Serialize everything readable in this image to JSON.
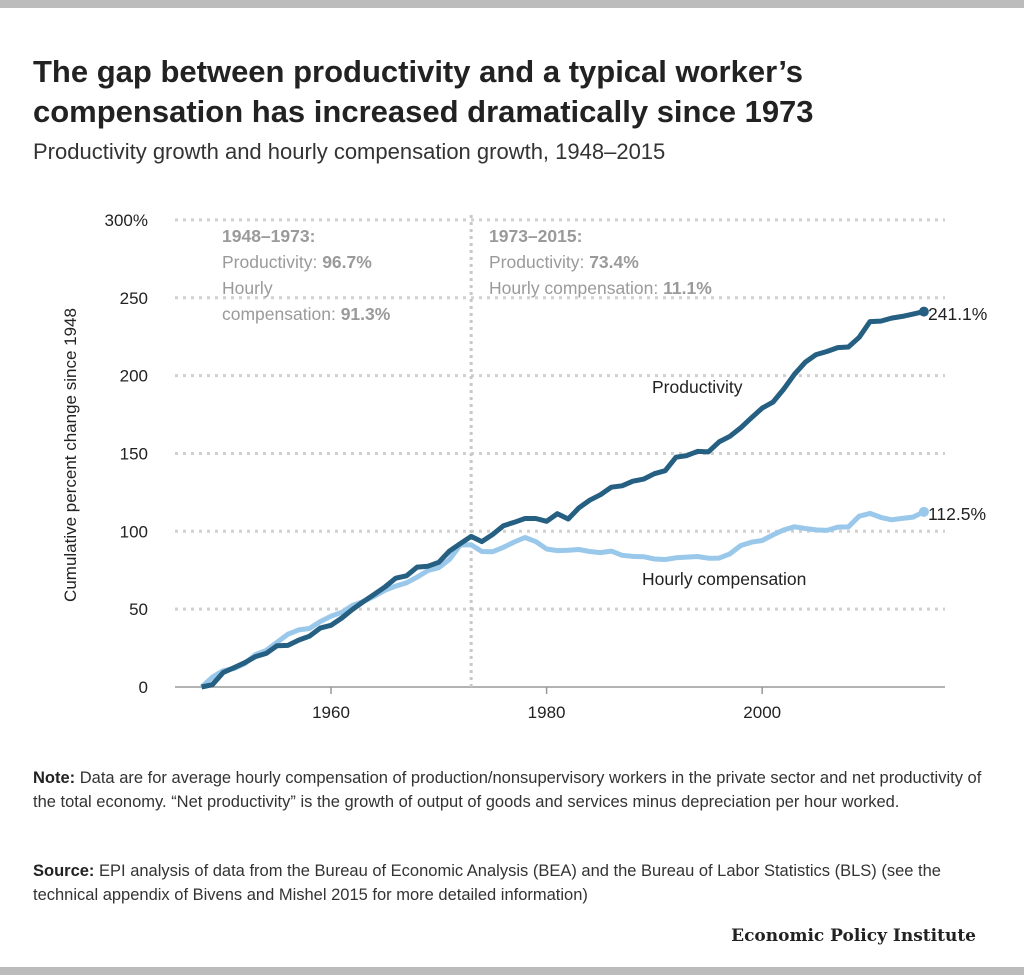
{
  "title": "The gap between productivity and a typical worker’s compensation has increased dramatically since 1973",
  "subtitle": "Productivity growth and hourly compensation growth, 1948–2015",
  "note_label": "Note:",
  "note_text": " Data are for average hourly compensation of production/nonsupervisory workers in the private sector and net productivity of the total economy. “Net productivity” is the growth of output of goods and services minus depreciation per hour worked.",
  "source_label": "Source:",
  "source_text": " EPI analysis of data from the Bureau of Economic Analysis (BEA) and the Bureau of Labor Statistics (BLS) (see the technical appendix of Bivens and Mishel 2015 for more detailed information)",
  "logo": "Economic Policy Institute",
  "colors": {
    "productivity": "#255f82",
    "compensation": "#9ac8eb",
    "annotation": "#9a9a9a",
    "grid": "#d0d0d0"
  },
  "chart_data": {
    "type": "line",
    "title": "The gap between productivity and a typical worker’s compensation has increased dramatically since 1973",
    "subtitle": "Productivity growth and hourly compensation growth, 1948–2015",
    "xlabel": "",
    "ylabel": "Cumulative percent change since 1948",
    "xlim": [
      1948,
      2015
    ],
    "ylim": [
      0,
      300
    ],
    "x_ticks": [
      "1960",
      "1980",
      "2000"
    ],
    "y_ticks": [
      "0",
      "50",
      "100",
      "150",
      "200",
      "250",
      "300%"
    ],
    "grid": "horizontal dotted",
    "x": [
      1948,
      1949,
      1950,
      1951,
      1952,
      1953,
      1954,
      1955,
      1956,
      1957,
      1958,
      1959,
      1960,
      1961,
      1962,
      1963,
      1964,
      1965,
      1966,
      1967,
      1968,
      1969,
      1970,
      1971,
      1972,
      1973,
      1974,
      1975,
      1976,
      1977,
      1978,
      1979,
      1980,
      1981,
      1982,
      1983,
      1984,
      1985,
      1986,
      1987,
      1988,
      1989,
      1990,
      1991,
      1992,
      1993,
      1994,
      1995,
      1996,
      1997,
      1998,
      1999,
      2000,
      2001,
      2002,
      2003,
      2004,
      2005,
      2006,
      2007,
      2008,
      2009,
      2010,
      2011,
      2012,
      2013,
      2014,
      2015
    ],
    "series": [
      {
        "name": "Productivity",
        "end_label": "241.1%",
        "values": [
          0,
          1.5,
          9.3,
          12.4,
          15.6,
          19.5,
          21.6,
          26.5,
          26.7,
          30.1,
          32.6,
          37.8,
          39.6,
          44.3,
          49.9,
          54.8,
          59.5,
          64.2,
          69.9,
          71.4,
          77.0,
          77.6,
          80.1,
          87.4,
          92.1,
          96.7,
          93.4,
          98.0,
          103.6,
          105.8,
          108.2,
          108.2,
          106.4,
          111.3,
          107.9,
          115.0,
          120.0,
          123.5,
          128.3,
          129.2,
          132.2,
          133.5,
          137.0,
          138.9,
          147.6,
          148.6,
          151.3,
          151.0,
          157.4,
          161.0,
          166.4,
          172.9,
          179.1,
          183.0,
          191.4,
          200.9,
          208.6,
          213.5,
          215.5,
          218.0,
          218.4,
          224.6,
          234.7,
          235.0,
          236.9,
          238.0,
          239.5,
          241.1
        ]
      },
      {
        "name": "Hourly compensation",
        "end_label": "112.5%",
        "values": [
          0,
          6.3,
          10.5,
          11.8,
          15.0,
          20.8,
          23.5,
          28.7,
          33.9,
          36.7,
          37.6,
          42.0,
          45.5,
          48.0,
          52.5,
          54.9,
          58.2,
          62.1,
          64.8,
          66.9,
          70.6,
          74.8,
          76.6,
          82.0,
          91.2,
          91.3,
          87.0,
          86.9,
          89.7,
          93.1,
          96.0,
          93.4,
          88.6,
          87.6,
          87.8,
          88.3,
          87.0,
          86.3,
          87.3,
          84.6,
          83.9,
          83.7,
          82.2,
          81.9,
          83.0,
          83.4,
          83.8,
          82.7,
          82.8,
          85.5,
          90.8,
          93.0,
          94.1,
          97.7,
          100.9,
          102.9,
          101.8,
          100.9,
          100.6,
          102.7,
          102.8,
          109.7,
          111.5,
          108.9,
          107.4,
          108.3,
          109.1,
          112.5
        ]
      }
    ],
    "annotations": [
      {
        "heading": "1948–1973:",
        "line1_label": "Productivity: ",
        "line1_value": "96.7%",
        "line2_label": "Hourly",
        "line3_label": "compensation: ",
        "line3_value": "91.3%"
      },
      {
        "heading": "1973–2015:",
        "line1_label": "Productivity: ",
        "line1_value": "73.4%",
        "line2_label": "Hourly compensation: ",
        "line2_value": "11.1%"
      }
    ],
    "reference_line_x": 1973
  }
}
